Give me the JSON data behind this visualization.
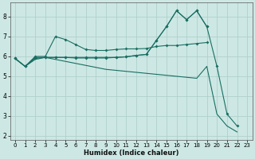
{
  "xlabel": "Humidex (Indice chaleur)",
  "bg_color": "#cde8e4",
  "grid_color": "#b0d0cc",
  "line_color": "#1a6e64",
  "xlim": [
    -0.5,
    23.5
  ],
  "ylim": [
    1.8,
    8.7
  ],
  "yticks": [
    2,
    3,
    4,
    5,
    6,
    7,
    8
  ],
  "xticks": [
    0,
    1,
    2,
    3,
    4,
    5,
    6,
    7,
    8,
    9,
    10,
    11,
    12,
    13,
    14,
    15,
    16,
    17,
    18,
    19,
    20,
    21,
    22,
    23
  ],
  "line1_x": [
    0,
    1,
    2,
    3,
    4,
    5,
    6,
    7,
    8,
    9,
    10,
    11,
    12,
    13,
    14,
    15,
    16,
    17,
    18,
    19,
    20,
    21,
    22
  ],
  "line1_y": [
    5.9,
    5.5,
    5.85,
    5.95,
    5.85,
    5.75,
    5.65,
    5.55,
    5.45,
    5.35,
    5.3,
    5.25,
    5.2,
    5.15,
    5.1,
    5.05,
    5.0,
    4.95,
    4.9,
    5.5,
    3.1,
    2.5,
    2.2
  ],
  "line2_x": [
    0,
    1,
    2,
    3,
    4,
    5,
    6,
    7,
    8,
    9,
    10,
    11,
    12,
    13,
    14,
    15,
    16,
    17,
    18,
    19
  ],
  "line2_y": [
    5.9,
    5.5,
    6.0,
    6.0,
    7.0,
    6.85,
    6.6,
    6.35,
    6.3,
    6.3,
    6.35,
    6.38,
    6.38,
    6.4,
    6.5,
    6.55,
    6.55,
    6.6,
    6.65,
    6.7
  ],
  "line3_x": [
    0,
    1,
    2,
    3,
    4,
    5,
    6,
    7,
    8,
    9,
    10,
    11,
    12,
    13,
    14,
    15,
    16,
    17,
    18,
    19
  ],
  "line3_y": [
    5.9,
    5.5,
    5.95,
    5.95,
    5.95,
    5.95,
    5.95,
    5.95,
    5.95,
    5.95,
    5.95,
    5.98,
    6.05,
    6.1,
    6.8,
    7.5,
    8.3,
    7.85,
    8.3,
    7.5
  ],
  "line4_x": [
    0,
    1,
    2,
    3,
    4,
    5,
    6,
    7,
    8,
    9,
    10,
    11,
    12,
    13,
    14,
    15,
    16,
    17,
    18,
    19,
    20,
    21,
    22
  ],
  "line4_y": [
    5.9,
    5.5,
    5.9,
    5.95,
    5.95,
    5.95,
    5.92,
    5.92,
    5.92,
    5.92,
    5.95,
    5.98,
    6.05,
    6.1,
    6.8,
    7.5,
    8.3,
    7.85,
    8.3,
    7.5,
    5.5,
    3.1,
    2.5
  ]
}
